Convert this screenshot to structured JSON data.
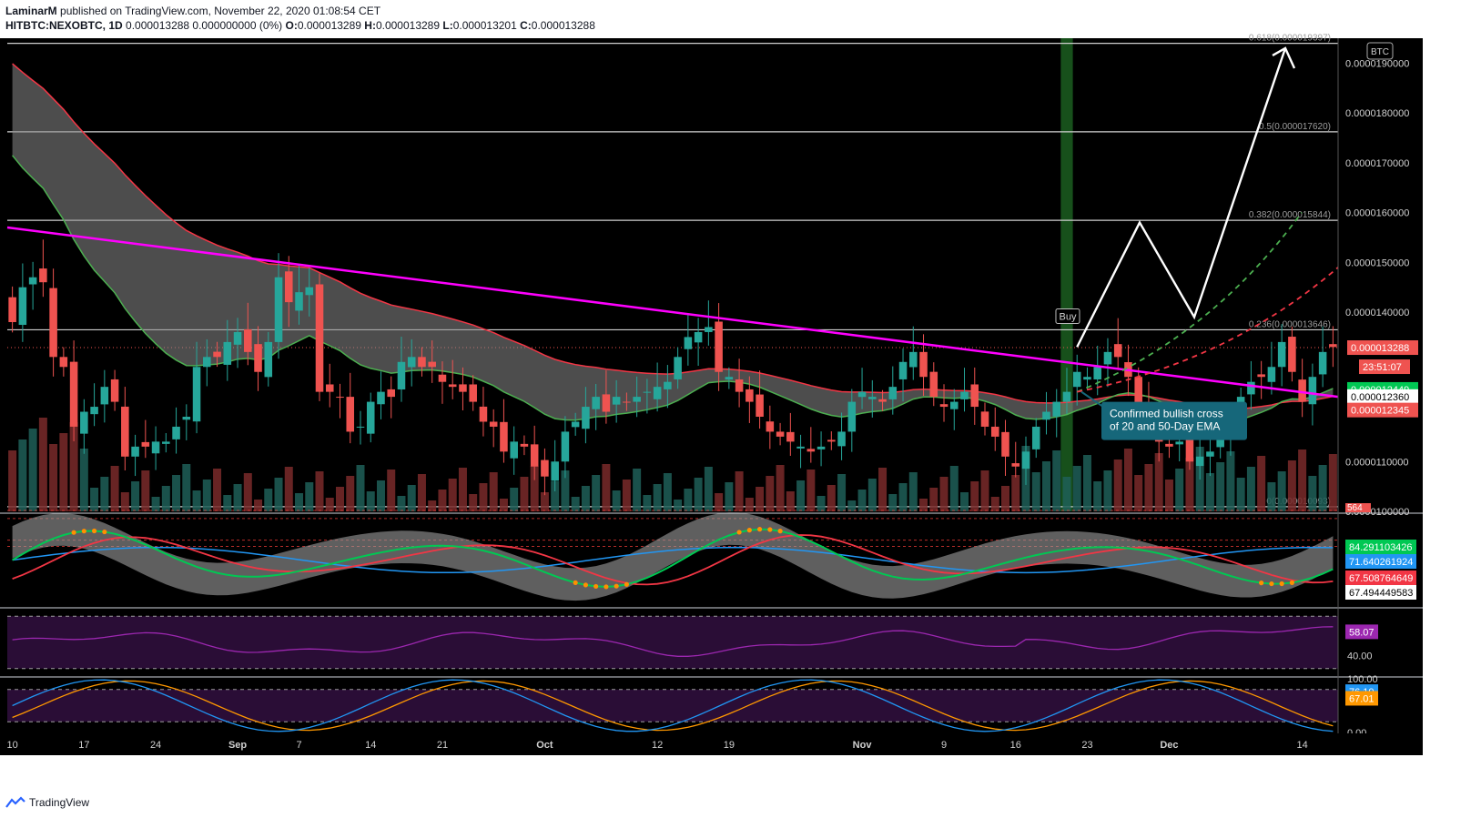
{
  "header": {
    "author": "LaminarM",
    "published": "published on TradingView.com, November 22, 2020 01:08:54 CET",
    "symbol": "HITBTC:NEXOBTC, 1D",
    "change": "0.000013288 0.000000000 (0%)",
    "open_label": "O:",
    "open": "0.000013289",
    "high_label": "H:",
    "high": "0.000013289",
    "low_label": "L:",
    "low": "0.000013201",
    "close_label": "C:",
    "close": "0.000013288"
  },
  "footer": {
    "brand": "TradingView"
  },
  "colors": {
    "background": "#000000",
    "up": "#26a69a",
    "down": "#ef5350",
    "trendline": "#ff00ff",
    "ema_fast": "#4caf50",
    "ema_slow": "#f23645",
    "fib": "#cfcfcf",
    "highlight": "#1b5e20"
  },
  "chart_data": [
    {
      "type": "candlestick",
      "panel": "price",
      "currency_badge": "BTC",
      "ylim": [
        1e-05,
        1.95e-05
      ],
      "y_ticks": [
        "0.0000190000",
        "0.0000180000",
        "0.0000170000",
        "0.0000160000",
        "0.0000150000",
        "0.0000140000",
        "0.0000110000",
        "0.0000100000"
      ],
      "x_ticks": [
        "10",
        "17",
        "24",
        "Sep",
        "7",
        "14",
        "21",
        "Oct",
        "12",
        "19",
        "Nov",
        "9",
        "16",
        "23",
        "Dec",
        "14"
      ],
      "x_range": [
        "2020-08-10",
        "2020-12-18"
      ],
      "fib_levels": [
        {
          "label": "0.618(0.000019397)",
          "value": 1.9397e-05
        },
        {
          "label": "0.5(0.000017620)",
          "value": 1.762e-05
        },
        {
          "label": "0.382(0.000015844)",
          "value": 1.5844e-05
        },
        {
          "label": "0.236(0.000013646)",
          "value": 1.3646e-05
        },
        {
          "label": "0(0.000010093)",
          "value": 1.0093e-05
        }
      ],
      "price_labels": [
        {
          "text": "0.000013288",
          "color": "#ef5350"
        },
        {
          "text": "23:51:07",
          "color": "#ef5350"
        },
        {
          "text": "0.000012449",
          "color": "#00c853"
        },
        {
          "text": "0.000012360",
          "color": "#ffffff"
        },
        {
          "text": "0.000012345",
          "color": "#ef5350"
        }
      ],
      "annotations": {
        "buy_label": "Buy",
        "callout_line1": "Confirmed bullish cross",
        "callout_line2": "of 20 and 50-Day EMA"
      },
      "volume_label": "564",
      "start_date": "2020-08-10",
      "closes": [
        1.38e-05,
        1.45e-05,
        1.47e-05,
        1.46e-05,
        1.31e-05,
        1.29e-05,
        1.17e-05,
        1.2e-05,
        1.21e-05,
        1.25e-05,
        1.22e-05,
        1.11e-05,
        1.13e-05,
        1.13e-05,
        1.14e-05,
        1.14e-05,
        1.17e-05,
        1.19e-05,
        1.29e-05,
        1.31e-05,
        1.31e-05,
        1.34e-05,
        1.36e-05,
        1.32e-05,
        1.28e-05,
        1.34e-05,
        1.47e-05,
        1.42e-05,
        1.44e-05,
        1.45e-05,
        1.24e-05,
        1.24e-05,
        1.23e-05,
        1.16e-05,
        1.17e-05,
        1.22e-05,
        1.24e-05,
        1.23e-05,
        1.3e-05,
        1.31e-05,
        1.29e-05,
        1.29e-05,
        1.26e-05,
        1.25e-05,
        1.24e-05,
        1.22e-05,
        1.18e-05,
        1.17e-05,
        1.12e-05,
        1.14e-05,
        1.13e-05,
        1.09e-05,
        1.07e-05,
        1.1e-05,
        1.16e-05,
        1.18e-05,
        1.21e-05,
        1.23e-05,
        1.2e-05,
        1.23e-05,
        1.22e-05,
        1.23e-05,
        1.24e-05,
        1.25e-05,
        1.26e-05,
        1.31e-05,
        1.35e-05,
        1.36e-05,
        1.37e-05,
        1.28e-05,
        1.27e-05,
        1.24e-05,
        1.22e-05,
        1.19e-05,
        1.16e-05,
        1.15e-05,
        1.14e-05,
        1.13e-05,
        1.12e-05,
        1.13e-05,
        1.14e-05,
        1.16e-05,
        1.22e-05,
        1.24e-05,
        1.23e-05,
        1.22e-05,
        1.25e-05,
        1.3e-05,
        1.32e-05,
        1.27e-05,
        1.23e-05,
        1.21e-05,
        1.22e-05,
        1.24e-05,
        1.21e-05,
        1.17e-05,
        1.15e-05,
        1.11e-05,
        1.09e-05,
        1.12e-05,
        1.17e-05,
        1.2e-05,
        1.22e-05,
        1.24e-05,
        1.28e-05,
        1.27e-05,
        1.29e-05,
        1.32e-05,
        1.31e-05,
        1.27e-05,
        1.21e-05,
        1.18e-05,
        1.14e-05,
        1.13e-05,
        1.14e-05,
        1.1e-05,
        1.11e-05,
        1.12e-05,
        1.16e-05,
        1.18e-05,
        1.23e-05,
        1.26e-05,
        1.27e-05,
        1.29e-05,
        1.34e-05,
        1.28e-05,
        1.22e-05,
        1.27e-05,
        1.32e-05,
        1.33e-05
      ]
    },
    {
      "type": "line",
      "panel": "oscillator-1",
      "ylim": [
        0,
        100
      ],
      "value_labels": [
        {
          "text": "84.291103426",
          "color": "#00c853"
        },
        {
          "text": "71.640261924",
          "color": "#2196f3"
        },
        {
          "text": "67.508764649",
          "color": "#f23645"
        },
        {
          "text": "67.494449583",
          "color": "#ffffff"
        }
      ]
    },
    {
      "type": "line",
      "panel": "rsi",
      "ylim": [
        25,
        75
      ],
      "y_ticks": [
        "40.00"
      ],
      "value_labels": [
        {
          "text": "58.07",
          "color": "#9c27b0"
        }
      ],
      "last_value": 58.07
    },
    {
      "type": "line",
      "panel": "stoch-rsi",
      "ylim": [
        0,
        100
      ],
      "y_ticks": [
        "100.00",
        "0.00"
      ],
      "value_labels": [
        {
          "text": "76.10",
          "color": "#2196f3"
        },
        {
          "text": "67.01",
          "color": "#ff9800"
        }
      ],
      "k_last": 76.1,
      "d_last": 67.01
    }
  ]
}
